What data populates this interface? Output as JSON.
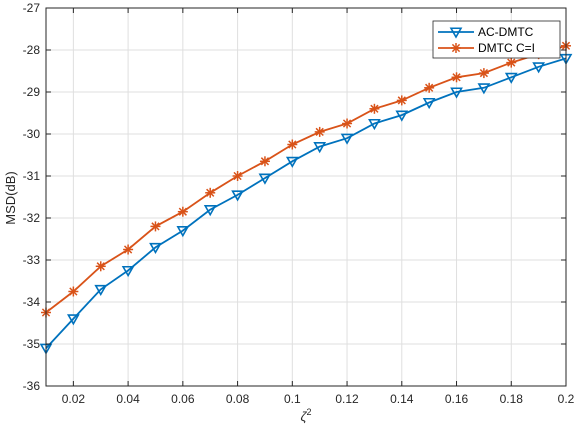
{
  "chart_data": {
    "type": "line",
    "xlabel_base": "ζ",
    "xlabel_sup": "2",
    "ylabel": "MSD(dB)",
    "xlim": [
      0.01,
      0.2
    ],
    "ylim": [
      -36,
      -27
    ],
    "xticks": [
      0.02,
      0.04,
      0.06,
      0.08,
      0.1,
      0.12,
      0.14,
      0.16,
      0.18,
      0.2
    ],
    "xtick_labels": [
      "0.02",
      "0.04",
      "0.06",
      "0.08",
      "0.1",
      "0.12",
      "0.14",
      "0.16",
      "0.18",
      "0.2"
    ],
    "yticks": [
      -36,
      -35,
      -34,
      -33,
      -32,
      -31,
      -30,
      -29,
      -28,
      -27
    ],
    "ytick_labels": [
      "-36",
      "-35",
      "-34",
      "-33",
      "-32",
      "-31",
      "-30",
      "-29",
      "-28",
      "-27"
    ],
    "grid": true,
    "legend_position": "top-right",
    "x": [
      0.01,
      0.02,
      0.03,
      0.04,
      0.05,
      0.06,
      0.07,
      0.08,
      0.09,
      0.1,
      0.11,
      0.12,
      0.13,
      0.14,
      0.15,
      0.16,
      0.17,
      0.18,
      0.19,
      0.2
    ],
    "series": [
      {
        "name": "AC-DMTC",
        "color": "#0072BD",
        "marker": "triangle-down",
        "values": [
          -35.1,
          -34.4,
          -33.7,
          -33.25,
          -32.7,
          -32.3,
          -31.8,
          -31.45,
          -31.05,
          -30.65,
          -30.3,
          -30.1,
          -29.75,
          -29.55,
          -29.25,
          -29.0,
          -28.9,
          -28.65,
          -28.4,
          -28.2
        ]
      },
      {
        "name": "DMTC C=I",
        "color": "#D95319",
        "marker": "asterisk",
        "values": [
          -34.25,
          -33.75,
          -33.15,
          -32.75,
          -32.2,
          -31.85,
          -31.4,
          -31.0,
          -30.65,
          -30.25,
          -29.95,
          -29.75,
          -29.4,
          -29.2,
          -28.9,
          -28.65,
          -28.55,
          -28.3,
          -28.1,
          -27.9
        ]
      }
    ]
  }
}
